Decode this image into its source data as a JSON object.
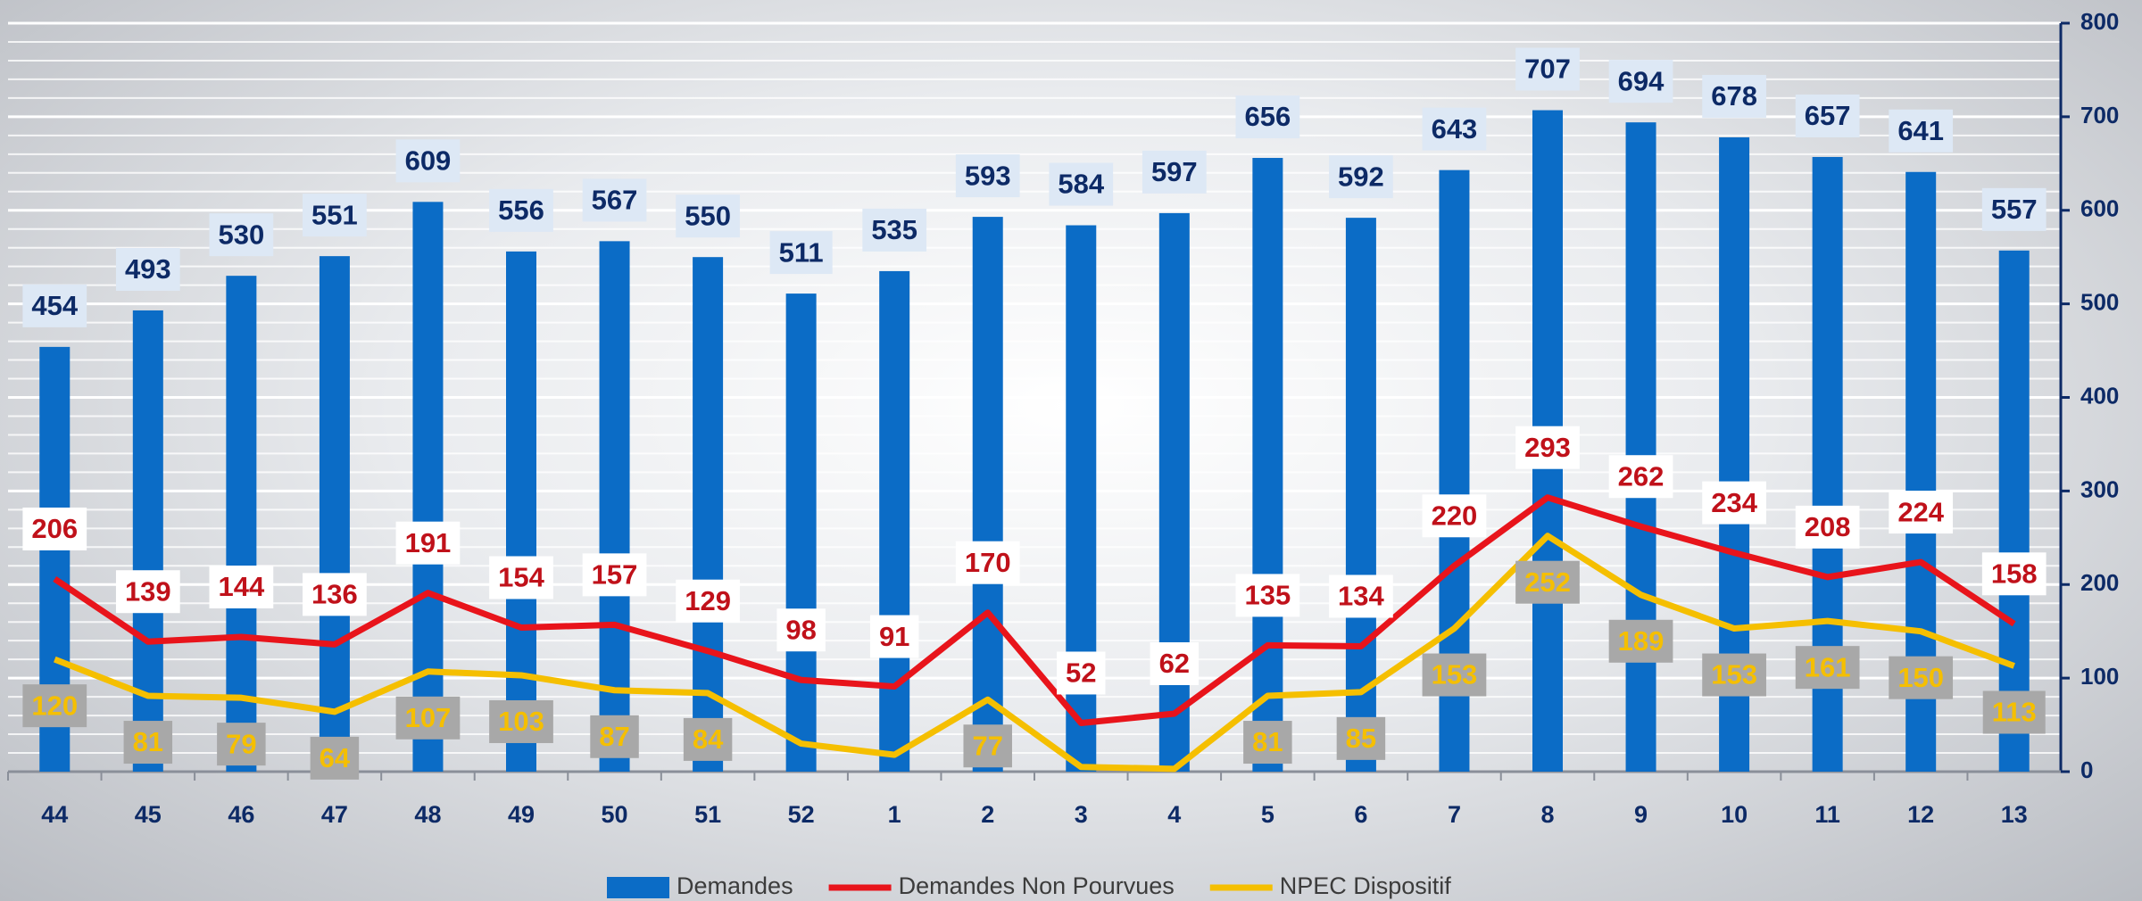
{
  "chart_data": {
    "type": "bar",
    "categories": [
      "44",
      "45",
      "46",
      "47",
      "48",
      "49",
      "50",
      "51",
      "52",
      "1",
      "2",
      "3",
      "4",
      "5",
      "6",
      "7",
      "8",
      "9",
      "10",
      "11",
      "12",
      "13"
    ],
    "series": [
      {
        "name": "Demandes",
        "type": "bar",
        "color": "#0b6cc6",
        "values": [
          454,
          493,
          530,
          551,
          609,
          556,
          567,
          550,
          511,
          535,
          593,
          584,
          597,
          656,
          592,
          643,
          707,
          694,
          678,
          657,
          641,
          557
        ]
      },
      {
        "name": "Demandes Non Pourvues",
        "type": "line",
        "color": "#e8141b",
        "values": [
          206,
          139,
          144,
          136,
          191,
          154,
          157,
          129,
          98,
          91,
          170,
          52,
          62,
          135,
          134,
          220,
          293,
          262,
          234,
          208,
          224,
          158
        ]
      },
      {
        "name": "NPEC Dispositif",
        "type": "line",
        "color": "#f5bf00",
        "values": [
          120,
          81,
          79,
          64,
          107,
          103,
          87,
          84,
          30,
          18,
          77,
          5,
          3,
          81,
          85,
          153,
          252,
          189,
          153,
          161,
          150,
          113
        ],
        "value_labels": [
          120,
          81,
          79,
          64,
          107,
          103,
          87,
          84,
          null,
          null,
          77,
          null,
          null,
          81,
          85,
          153,
          252,
          189,
          153,
          161,
          150,
          113
        ]
      }
    ],
    "ylim": [
      0,
      800
    ],
    "yticks": [
      0,
      100,
      200,
      300,
      400,
      500,
      600,
      700,
      800
    ],
    "grid": true,
    "legend": "bottom"
  }
}
